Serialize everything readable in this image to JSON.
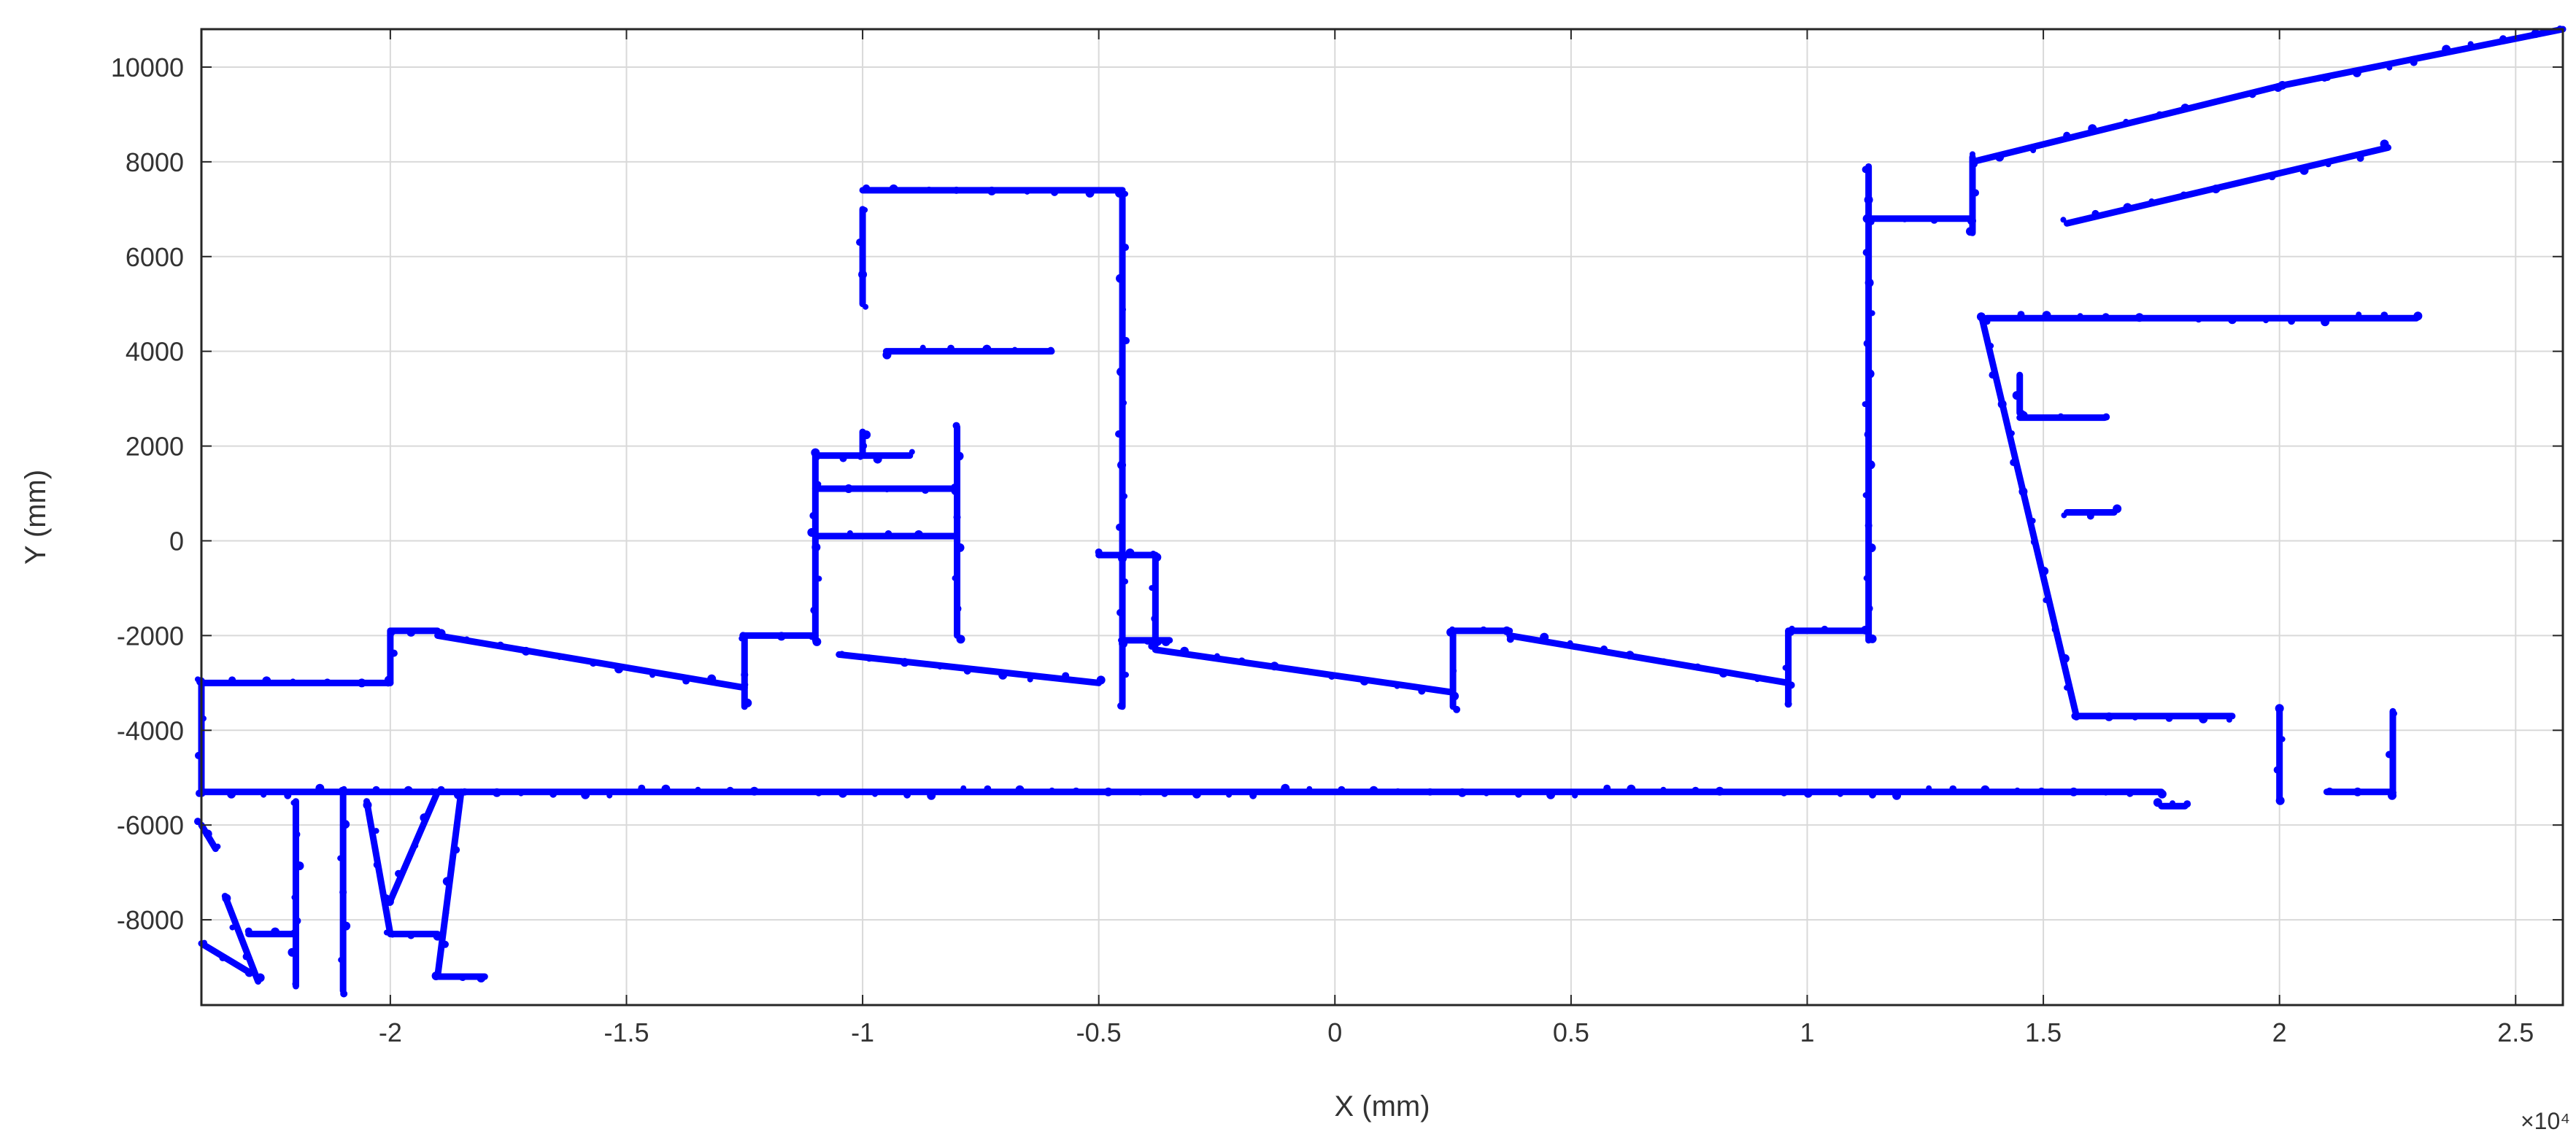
{
  "chart_data": {
    "type": "scatter",
    "title": "",
    "xlabel": "X (mm)",
    "ylabel": "Y (mm)",
    "x_exponent_label": "×10⁴",
    "x_scale_factor": 10000,
    "xlim": [
      -24000,
      26000
    ],
    "ylim": [
      -9800,
      10800
    ],
    "x_ticks": [
      -20000,
      -15000,
      -10000,
      -5000,
      0,
      5000,
      10000,
      15000,
      20000,
      25000
    ],
    "x_tick_labels": [
      "-2",
      "-1.5",
      "-1",
      "-0.5",
      "0",
      "0.5",
      "1",
      "1.5",
      "2",
      "2.5"
    ],
    "y_ticks": [
      -8000,
      -6000,
      -4000,
      -2000,
      0,
      2000,
      4000,
      6000,
      8000,
      10000
    ],
    "y_tick_labels": [
      "-8000",
      "-6000",
      "-4000",
      "-2000",
      "0",
      "2000",
      "4000",
      "6000",
      "8000",
      "10000"
    ],
    "grid": true,
    "legend": "none",
    "color": "#0000ff",
    "series": [
      {
        "segments": [
          [
            [
              -24000,
              -3000
            ],
            [
              -20000,
              -3000
            ]
          ],
          [
            [
              -24000,
              -5300
            ],
            [
              17500,
              -5300
            ]
          ],
          [
            [
              -24000,
              -3000
            ],
            [
              -24000,
              -5300
            ]
          ],
          [
            [
              -20000,
              -1900
            ],
            [
              -20000,
              -3000
            ]
          ],
          [
            [
              -20000,
              -1900
            ],
            [
              -19000,
              -1900
            ]
          ],
          [
            [
              -19000,
              -2000
            ],
            [
              -12500,
              -3100
            ]
          ],
          [
            [
              -12500,
              -2000
            ],
            [
              -12500,
              -3500
            ]
          ],
          [
            [
              -12500,
              -2000
            ],
            [
              -11000,
              -2000
            ]
          ],
          [
            [
              -11000,
              1800
            ],
            [
              -11000,
              -2100
            ]
          ],
          [
            [
              -11000,
              1800
            ],
            [
              -9000,
              1800
            ]
          ],
          [
            [
              -11000,
              1100
            ],
            [
              -8000,
              1100
            ]
          ],
          [
            [
              -11000,
              100
            ],
            [
              -8000,
              100
            ]
          ],
          [
            [
              -10000,
              1800
            ],
            [
              -10000,
              2300
            ]
          ],
          [
            [
              -8000,
              2400
            ],
            [
              -8000,
              -2000
            ]
          ],
          [
            [
              -9500,
              4000
            ],
            [
              -6000,
              4000
            ]
          ],
          [
            [
              -10000,
              7000
            ],
            [
              -10000,
              5000
            ]
          ],
          [
            [
              -10000,
              7400
            ],
            [
              -4500,
              7400
            ]
          ],
          [
            [
              -4500,
              7400
            ],
            [
              -4500,
              -3500
            ]
          ],
          [
            [
              -4500,
              -2100
            ],
            [
              -3500,
              -2100
            ]
          ],
          [
            [
              -5000,
              -300
            ],
            [
              -3800,
              -300
            ]
          ],
          [
            [
              -3800,
              -300
            ],
            [
              -3800,
              -2200
            ]
          ],
          [
            [
              -10500,
              -2400
            ],
            [
              -5000,
              -3000
            ]
          ],
          [
            [
              -3800,
              -2300
            ],
            [
              2500,
              -3200
            ]
          ],
          [
            [
              2500,
              -1900
            ],
            [
              2500,
              -3500
            ]
          ],
          [
            [
              2500,
              -1900
            ],
            [
              3700,
              -1900
            ]
          ],
          [
            [
              3700,
              -2000
            ],
            [
              9600,
              -3000
            ]
          ],
          [
            [
              9600,
              -1900
            ],
            [
              9600,
              -3400
            ]
          ],
          [
            [
              9600,
              -1900
            ],
            [
              11200,
              -1900
            ]
          ],
          [
            [
              11300,
              7900
            ],
            [
              11300,
              -2100
            ]
          ],
          [
            [
              11300,
              6800
            ],
            [
              13500,
              6800
            ]
          ],
          [
            [
              13500,
              8100
            ],
            [
              13500,
              6500
            ]
          ],
          [
            [
              13500,
              8000
            ],
            [
              20000,
              9600
            ]
          ],
          [
            [
              20000,
              9600
            ],
            [
              21000,
              9800
            ]
          ],
          [
            [
              15500,
              6700
            ],
            [
              22300,
              8300
            ]
          ],
          [
            [
              21000,
              9800
            ],
            [
              26000,
              10800
            ]
          ],
          [
            [
              13700,
              4700
            ],
            [
              15700,
              -3700
            ]
          ],
          [
            [
              13800,
              4700
            ],
            [
              22900,
              4700
            ]
          ],
          [
            [
              14500,
              2700
            ],
            [
              14500,
              3500
            ]
          ],
          [
            [
              14500,
              2600
            ],
            [
              16300,
              2600
            ]
          ],
          [
            [
              15500,
              600
            ],
            [
              16500,
              600
            ]
          ],
          [
            [
              15700,
              -3700
            ],
            [
              19000,
              -3700
            ]
          ],
          [
            [
              20000,
              -3600
            ],
            [
              20000,
              -5500
            ]
          ],
          [
            [
              22400,
              -3600
            ],
            [
              22400,
              -5300
            ]
          ],
          [
            [
              21000,
              -5300
            ],
            [
              22400,
              -5300
            ]
          ],
          [
            [
              17500,
              -5600
            ],
            [
              18000,
              -5600
            ]
          ],
          [
            [
              -22000,
              -5500
            ],
            [
              -22000,
              -9400
            ]
          ],
          [
            [
              -21000,
              -5300
            ],
            [
              -21000,
              -9500
            ]
          ],
          [
            [
              -20500,
              -5500
            ],
            [
              -20000,
              -8300
            ]
          ],
          [
            [
              -20000,
              -8300
            ],
            [
              -19000,
              -8300
            ]
          ],
          [
            [
              -19000,
              -5300
            ],
            [
              -20000,
              -7600
            ]
          ],
          [
            [
              -18500,
              -5300
            ],
            [
              -19000,
              -9200
            ]
          ],
          [
            [
              -19000,
              -9200
            ],
            [
              -18000,
              -9200
            ]
          ],
          [
            [
              -23000,
              -8300
            ],
            [
              -22000,
              -8300
            ]
          ],
          [
            [
              -23500,
              -7500
            ],
            [
              -22800,
              -9300
            ]
          ],
          [
            [
              -24000,
              -8500
            ],
            [
              -23000,
              -9100
            ]
          ],
          [
            [
              -24000,
              -6000
            ],
            [
              -23700,
              -6500
            ]
          ]
        ]
      }
    ]
  }
}
